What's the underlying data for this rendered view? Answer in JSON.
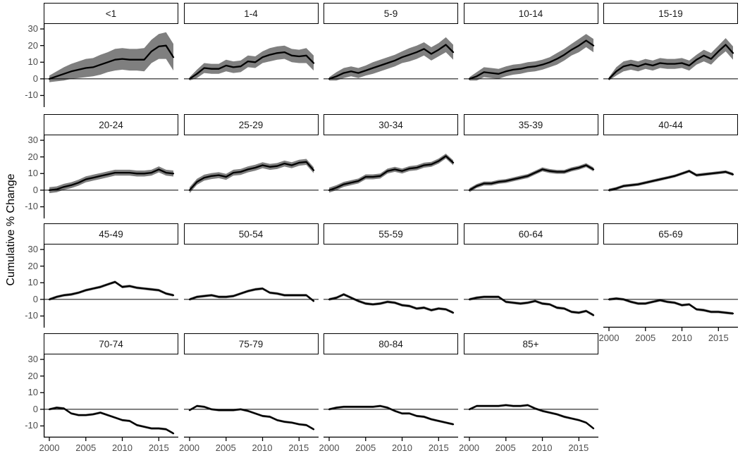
{
  "chart_data": {
    "type": "line",
    "title": "",
    "xlabel": "",
    "ylabel": "Cumulative % Change",
    "x": [
      2000,
      2001,
      2002,
      2003,
      2004,
      2005,
      2006,
      2007,
      2008,
      2009,
      2010,
      2011,
      2012,
      2013,
      2014,
      2015,
      2016,
      2017
    ],
    "x_ticks": [
      2000,
      2005,
      2010,
      2015
    ],
    "y_ticks": [
      30,
      20,
      10,
      0,
      -10
    ],
    "ylim": [
      -17,
      33
    ],
    "grid": "off",
    "legend": "none",
    "line_color": "#000000",
    "ribbon_color": "#7f7f7f",
    "zero_line": 0,
    "facets": [
      {
        "label": "<1",
        "values": [
          0,
          1.5,
          3,
          4.5,
          5.5,
          6.5,
          7,
          8.5,
          10,
          11.5,
          12,
          11.5,
          11.5,
          11.5,
          16.5,
          19.5,
          20,
          13
        ],
        "band": [
          2,
          3,
          4,
          4.5,
          5,
          5.5,
          5.5,
          6,
          6,
          6.5,
          6.5,
          6.5,
          6.5,
          7,
          7,
          7.5,
          8,
          8
        ]
      },
      {
        "label": "1-4",
        "values": [
          0,
          3,
          6.5,
          6,
          6,
          8,
          7,
          7.5,
          10.5,
          10,
          13,
          14.5,
          15.5,
          16,
          14,
          13.5,
          14,
          9.5
        ],
        "band": [
          1,
          2.5,
          3,
          3,
          3,
          3.5,
          3.5,
          3.5,
          3.5,
          3.5,
          3.5,
          4,
          4,
          4,
          4,
          4,
          4.5,
          4.5
        ]
      },
      {
        "label": "5-9",
        "values": [
          0,
          1.5,
          3.5,
          4.5,
          3.5,
          5,
          6.5,
          8,
          9.5,
          11,
          13,
          14.5,
          16,
          18,
          15,
          17.5,
          20.5,
          16
        ],
        "band": [
          1,
          2.5,
          3,
          3,
          3,
          3,
          3.5,
          3.5,
          3.5,
          3.5,
          3.5,
          4,
          4,
          4,
          4,
          4,
          4.5,
          4.5
        ]
      },
      {
        "label": "10-14",
        "values": [
          0,
          1.5,
          4,
          3.5,
          3,
          4.5,
          5.5,
          6,
          7,
          7.5,
          8.5,
          10,
          12,
          14.5,
          17.5,
          20,
          23,
          20
        ],
        "band": [
          1,
          2.5,
          3,
          3,
          3,
          3,
          3,
          3,
          3,
          3,
          3,
          3,
          3.5,
          3.5,
          3.5,
          4,
          4,
          4
        ]
      },
      {
        "label": "15-19",
        "values": [
          0,
          4.5,
          7.5,
          8.5,
          7.5,
          9,
          8,
          9.5,
          9,
          9,
          9.5,
          8,
          11.5,
          14,
          12,
          16.5,
          20.5,
          15.5
        ],
        "band": [
          1,
          2.5,
          3,
          3,
          3,
          3,
          3,
          3,
          3,
          3,
          3,
          3,
          3,
          3.5,
          3.5,
          3.5,
          4,
          4
        ]
      },
      {
        "label": "20-24",
        "values": [
          0,
          0.5,
          2,
          3,
          4.5,
          6.5,
          7.5,
          8.5,
          9.5,
          10.5,
          10.5,
          10.5,
          10,
          10,
          10.5,
          12.5,
          10.5,
          10
        ],
        "band": 1.8
      },
      {
        "label": "25-29",
        "values": [
          0,
          5,
          7.5,
          8.5,
          9,
          8,
          10.5,
          11,
          12.5,
          13.5,
          15,
          14,
          14.5,
          16,
          15,
          16.5,
          17,
          12
        ],
        "band": 1.8
      },
      {
        "label": "30-34",
        "values": [
          0,
          1.5,
          3.5,
          4.5,
          5.5,
          8,
          8,
          8.5,
          11.5,
          12.5,
          11.5,
          13,
          13.5,
          15,
          15.5,
          17.5,
          20.5,
          16.5
        ],
        "band": 1.5
      },
      {
        "label": "35-39",
        "values": [
          0,
          2.5,
          4,
          4,
          5,
          5.5,
          6.5,
          7.5,
          8.5,
          10.5,
          12.5,
          11.5,
          11,
          11,
          12.5,
          13.5,
          15,
          12.5
        ],
        "band": 1.2
      },
      {
        "label": "40-44",
        "values": [
          0,
          1,
          2.5,
          3,
          3.5,
          4.5,
          5.5,
          6.5,
          7.5,
          8.5,
          10,
          11.5,
          9,
          9.5,
          10,
          10.5,
          11,
          9.5
        ],
        "band": 0.9
      },
      {
        "label": "45-49",
        "values": [
          0,
          1.5,
          2.5,
          3,
          4,
          5.5,
          6.5,
          7.5,
          9,
          10.5,
          7.5,
          8,
          7,
          6.5,
          6,
          5.5,
          3.5,
          2.5
        ],
        "band": 0.8
      },
      {
        "label": "50-54",
        "values": [
          0,
          1.5,
          2,
          2.5,
          1.5,
          1.5,
          2,
          3.5,
          5,
          6,
          6.5,
          4,
          3.5,
          2.5,
          2.5,
          2.5,
          2.5,
          -1
        ],
        "band": 0.8
      },
      {
        "label": "55-59",
        "values": [
          0,
          1,
          3,
          1,
          -1,
          -2.5,
          -3,
          -2.5,
          -1.5,
          -2,
          -3.5,
          -4,
          -5.5,
          -5,
          -6.5,
          -5.5,
          -6,
          -8
        ],
        "band": 0.8
      },
      {
        "label": "60-64",
        "values": [
          0,
          1,
          1.5,
          1.5,
          1.5,
          -1.5,
          -2,
          -2.5,
          -2,
          -1,
          -2.5,
          -3,
          -5,
          -5.5,
          -7.5,
          -8,
          -7,
          -9.5
        ],
        "band": 0.8
      },
      {
        "label": "65-69",
        "values": [
          0,
          0.5,
          0,
          -1.5,
          -2.5,
          -2.5,
          -1.5,
          -0.5,
          -1.5,
          -2,
          -3.5,
          -3,
          -6,
          -6.5,
          -7.5,
          -7.5,
          -8,
          -8.5
        ],
        "band": 0.8
      },
      {
        "label": "70-74",
        "values": [
          0,
          1,
          0.5,
          -2.5,
          -3.5,
          -3.5,
          -3,
          -2,
          -3.5,
          -5,
          -6.5,
          -7,
          -9.5,
          -10.5,
          -11.5,
          -11.5,
          -12,
          -14.5
        ],
        "band": 0.7
      },
      {
        "label": "75-79",
        "values": [
          -0.5,
          2,
          1.5,
          0,
          -0.5,
          -0.5,
          -0.5,
          0,
          -1,
          -2.5,
          -4,
          -4.5,
          -6.5,
          -7.5,
          -8,
          -9,
          -9.5,
          -12
        ],
        "band": 0.7
      },
      {
        "label": "80-84",
        "values": [
          0,
          1,
          1.5,
          1.5,
          1.5,
          1.5,
          1.5,
          2,
          1,
          -1,
          -2.5,
          -2.5,
          -4,
          -4.5,
          -6,
          -7,
          -8,
          -9
        ],
        "band": 0.7
      },
      {
        "label": "85+",
        "values": [
          0,
          2,
          2,
          2,
          2,
          2.5,
          2,
          2,
          2.5,
          0.5,
          -1,
          -2,
          -3,
          -4.5,
          -5.5,
          -6.5,
          -8,
          -11.5
        ],
        "band": 0.7
      }
    ]
  }
}
